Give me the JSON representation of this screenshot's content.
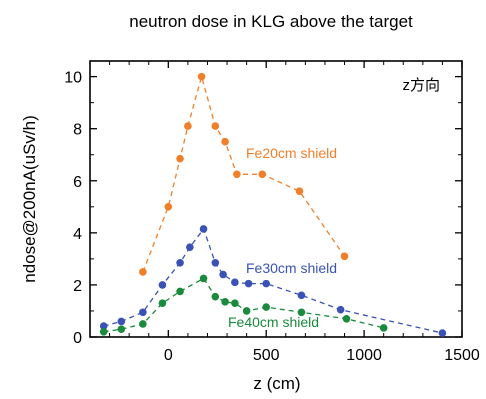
{
  "chart_data": {
    "type": "scatter",
    "title": "neutron dose in KLG above the target",
    "xlabel": "z (cm)",
    "ylabel": "ndose@200nA(uSv/h)",
    "annotation": "z方向",
    "xlim": [
      -400,
      1500
    ],
    "ylim": [
      0,
      10.6
    ],
    "xticks": [
      0,
      500,
      1000,
      1500
    ],
    "yticks": [
      0,
      2,
      4,
      6,
      8,
      10
    ],
    "grid": false,
    "series": [
      {
        "name": "Fe20cm shield",
        "color": "#f07f2a",
        "x": [
          -130,
          0,
          60,
          100,
          170,
          240,
          290,
          350,
          480,
          670,
          900
        ],
        "y": [
          2.5,
          5.0,
          6.85,
          8.1,
          10.0,
          8.1,
          7.5,
          6.25,
          6.25,
          5.6,
          3.1
        ]
      },
      {
        "name": "Fe30cm shield",
        "color": "#3a52b5",
        "x": [
          -330,
          -240,
          -130,
          -30,
          60,
          110,
          180,
          240,
          280,
          340,
          410,
          500,
          680,
          880,
          1400
        ],
        "y": [
          0.42,
          0.6,
          0.95,
          2.0,
          2.85,
          3.45,
          4.15,
          2.85,
          2.4,
          2.1,
          2.05,
          2.05,
          1.6,
          1.05,
          0.15
        ]
      },
      {
        "name": "Fe40cm shield",
        "color": "#1a8a3c",
        "x": [
          -330,
          -240,
          -130,
          -30,
          60,
          180,
          240,
          290,
          340,
          400,
          500,
          680,
          910,
          1100
        ],
        "y": [
          0.2,
          0.3,
          0.5,
          1.3,
          1.75,
          2.25,
          1.55,
          1.35,
          1.3,
          1.0,
          1.15,
          0.95,
          0.7,
          0.35
        ]
      }
    ]
  }
}
